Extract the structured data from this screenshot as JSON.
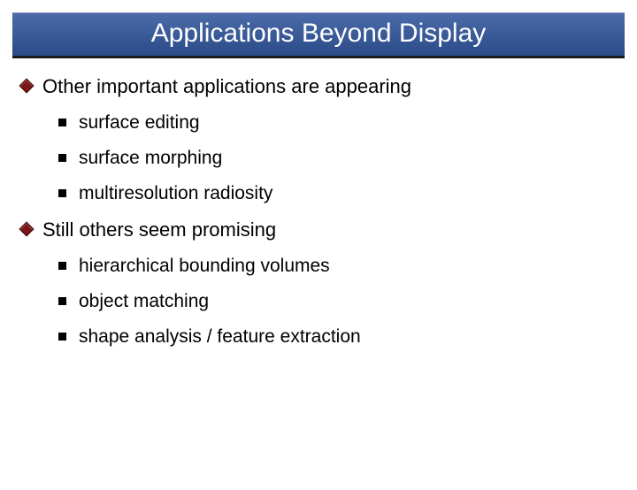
{
  "title": "Applications Beyond Display",
  "colors": {
    "title_bar_gradient_top": "#4a6ba8",
    "title_bar_gradient_bottom": "#2a4a88",
    "title_bar_underline": "#1a1a1a",
    "title_text": "#ffffff",
    "diamond_fill": "#7a1818",
    "diamond_border": "#3a0808",
    "square_fill": "#000000",
    "body_text": "#000000",
    "background": "#ffffff"
  },
  "typography": {
    "title_fontsize": 30,
    "main_fontsize": 22,
    "sub_fontsize": 21,
    "font_family": "Arial"
  },
  "bullets": [
    {
      "text": "Other important applications are appearing",
      "subs": [
        "surface editing",
        "surface morphing",
        "multiresolution radiosity"
      ]
    },
    {
      "text": "Still others seem promising",
      "subs": [
        "hierarchical bounding volumes",
        "object matching",
        "shape analysis / feature extraction"
      ]
    }
  ]
}
